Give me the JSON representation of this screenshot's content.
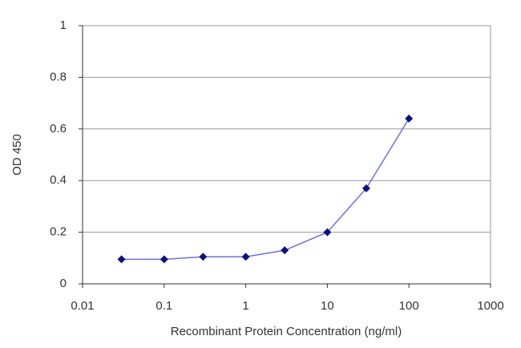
{
  "chart_data": {
    "type": "line",
    "y_label": "OD 450",
    "x_label": "Recombinant Protein Concentration (ng/ml)",
    "x": [
      0.03,
      0.1,
      0.3,
      1,
      3,
      10,
      30,
      100
    ],
    "values": [
      0.095,
      0.095,
      0.105,
      0.105,
      0.13,
      0.2,
      0.37,
      0.64
    ],
    "color": "#6f6fd8",
    "marker_color": "#101080",
    "xscale": "log",
    "xlim": [
      0.01,
      1000
    ],
    "xticks": [
      0.01,
      0.1,
      1,
      10,
      100,
      1000
    ],
    "ylim": [
      0,
      1
    ],
    "yticks": [
      0,
      0.2,
      0.4,
      0.6,
      0.8,
      1
    ],
    "grid": true
  }
}
